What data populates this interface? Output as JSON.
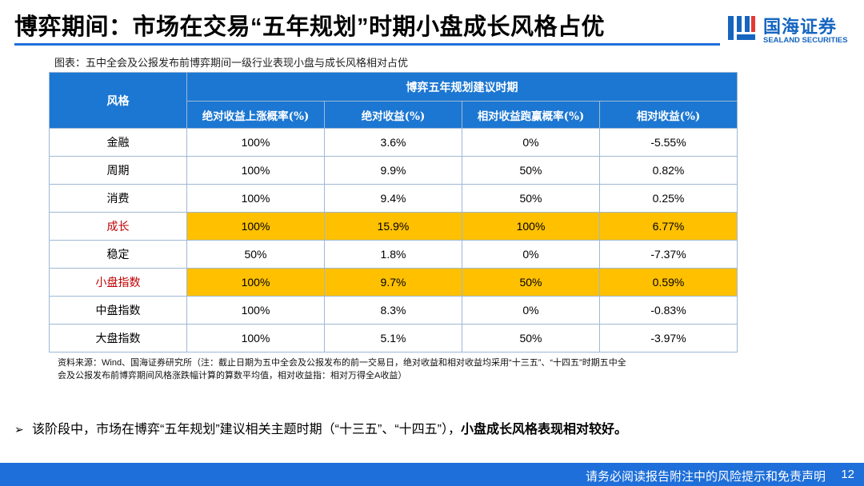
{
  "slide": {
    "title": "博弈期间：市场在交易“五年规划”时期小盘成长风格占优",
    "page_number": "12"
  },
  "logo": {
    "cn": "国海证券",
    "en": "SEALAND SECURITIES"
  },
  "caption": "图表：五中全会及公报发布前博弈期间一级行业表现小盘与成长风格相对占优",
  "table": {
    "style_header": "风格",
    "group_header": "博弈五年规划建议时期",
    "columns": [
      "绝对收益上涨概率(%)",
      "绝对收益(%)",
      "相对收益跑赢概率(%)",
      "相对收益(%)"
    ],
    "rows": [
      {
        "label": "金融",
        "values": [
          "100%",
          "3.6%",
          "0%",
          "-5.55%"
        ],
        "highlight": false
      },
      {
        "label": "周期",
        "values": [
          "100%",
          "9.9%",
          "50%",
          "0.82%"
        ],
        "highlight": false
      },
      {
        "label": "消费",
        "values": [
          "100%",
          "9.4%",
          "50%",
          "0.25%"
        ],
        "highlight": false
      },
      {
        "label": "成长",
        "values": [
          "100%",
          "15.9%",
          "100%",
          "6.77%"
        ],
        "highlight": true
      },
      {
        "label": "稳定",
        "values": [
          "50%",
          "1.8%",
          "0%",
          "-7.37%"
        ],
        "highlight": false
      },
      {
        "label": "小盘指数",
        "values": [
          "100%",
          "9.7%",
          "50%",
          "0.59%"
        ],
        "highlight": true
      },
      {
        "label": "中盘指数",
        "values": [
          "100%",
          "8.3%",
          "0%",
          "-0.83%"
        ],
        "highlight": false
      },
      {
        "label": "大盘指数",
        "values": [
          "100%",
          "5.1%",
          "50%",
          "-3.97%"
        ],
        "highlight": false
      }
    ]
  },
  "source_note": {
    "line1": "资料来源：Wind、国海证券研究所（注：截止日期为五中全会及公报发布的前一交易日，绝对收益和相对收益均采用“十三五”、“十四五”时期五中全",
    "line2": "会及公报发布前博弈期间风格涨跌幅计算的算数平均值，相对收益指：相对万得全A收益）"
  },
  "bullet": {
    "arrow": "➢",
    "text": "该阶段中，市场在博弈“五年规划”建议相关主题时期（“十三五”、“十四五”），",
    "bold": "小盘成长风格表现相对较好。"
  },
  "footer": {
    "disclaimer": "请务必阅读报告附注中的风险提示和免责声明"
  },
  "colors": {
    "brand_blue": "#1E6FD9",
    "header_blue": "#1C77D2",
    "highlight": "#FFC000",
    "highlight_label": "#C00000"
  }
}
